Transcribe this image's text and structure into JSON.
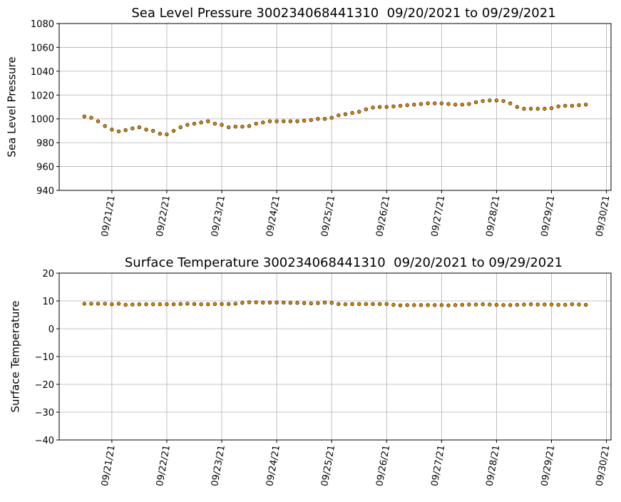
{
  "chart_data": [
    {
      "type": "scatter",
      "title": "Sea Level Pressure 300234068441310  09/20/2021 to 09/29/2021",
      "y_label": "Sea Level Pressure",
      "x": [
        "2021-09-20T12:00",
        "2021-09-20T15:00",
        "2021-09-20T18:00",
        "2021-09-20T21:00",
        "2021-09-21T00:00",
        "2021-09-21T03:00",
        "2021-09-21T06:00",
        "2021-09-21T09:00",
        "2021-09-21T12:00",
        "2021-09-21T15:00",
        "2021-09-21T18:00",
        "2021-09-21T21:00",
        "2021-09-22T00:00",
        "2021-09-22T03:00",
        "2021-09-22T06:00",
        "2021-09-22T09:00",
        "2021-09-22T12:00",
        "2021-09-22T15:00",
        "2021-09-22T18:00",
        "2021-09-22T21:00",
        "2021-09-23T00:00",
        "2021-09-23T03:00",
        "2021-09-23T06:00",
        "2021-09-23T09:00",
        "2021-09-23T12:00",
        "2021-09-23T15:00",
        "2021-09-23T18:00",
        "2021-09-23T21:00",
        "2021-09-24T00:00",
        "2021-09-24T03:00",
        "2021-09-24T06:00",
        "2021-09-24T09:00",
        "2021-09-24T12:00",
        "2021-09-24T15:00",
        "2021-09-24T18:00",
        "2021-09-24T21:00",
        "2021-09-25T00:00",
        "2021-09-25T03:00",
        "2021-09-25T06:00",
        "2021-09-25T09:00",
        "2021-09-25T12:00",
        "2021-09-25T15:00",
        "2021-09-25T18:00",
        "2021-09-25T21:00",
        "2021-09-26T00:00",
        "2021-09-26T03:00",
        "2021-09-26T06:00",
        "2021-09-26T09:00",
        "2021-09-26T12:00",
        "2021-09-26T15:00",
        "2021-09-26T18:00",
        "2021-09-26T21:00",
        "2021-09-27T00:00",
        "2021-09-27T03:00",
        "2021-09-27T06:00",
        "2021-09-27T09:00",
        "2021-09-27T12:00",
        "2021-09-27T15:00",
        "2021-09-27T18:00",
        "2021-09-27T21:00",
        "2021-09-28T00:00",
        "2021-09-28T03:00",
        "2021-09-28T06:00",
        "2021-09-28T09:00",
        "2021-09-28T12:00",
        "2021-09-28T15:00",
        "2021-09-28T18:00",
        "2021-09-28T21:00",
        "2021-09-29T00:00",
        "2021-09-29T03:00",
        "2021-09-29T06:00",
        "2021-09-29T09:00",
        "2021-09-29T12:00",
        "2021-09-29T15:00"
      ],
      "series": [
        {
          "color": "#e08a00",
          "values": [
            1002,
            1001,
            998,
            994,
            991,
            989.5,
            990.5,
            992,
            993,
            991,
            990,
            987.5,
            987,
            990,
            993,
            995,
            996,
            997,
            998,
            996,
            995,
            993,
            993.5,
            993.5,
            994,
            996,
            997,
            998,
            998,
            998,
            998,
            998,
            998.5,
            999,
            1000,
            1000,
            1001,
            1003,
            1004,
            1005,
            1006,
            1008,
            1009.5,
            1010,
            1010,
            1010.5,
            1011,
            1011.5,
            1012,
            1012.5,
            1013,
            1013,
            1013,
            1012.5,
            1012,
            1012,
            1012.5,
            1014,
            1015,
            1015.5,
            1015.5,
            1015,
            1013,
            1010,
            1008.5,
            1008.5,
            1008.5,
            1008.5,
            1009,
            1010.5,
            1011,
            1011,
            1011.5,
            1012
          ]
        }
      ],
      "xlim": [
        "2021-09-20T01:00",
        "2021-09-30T02:00"
      ],
      "xticks": [
        {
          "value": "2021-09-21",
          "label": "09/21/21"
        },
        {
          "value": "2021-09-22",
          "label": "09/22/21"
        },
        {
          "value": "2021-09-23",
          "label": "09/23/21"
        },
        {
          "value": "2021-09-24",
          "label": "09/24/21"
        },
        {
          "value": "2021-09-25",
          "label": "09/25/21"
        },
        {
          "value": "2021-09-26",
          "label": "09/26/21"
        },
        {
          "value": "2021-09-27",
          "label": "09/27/21"
        },
        {
          "value": "2021-09-28",
          "label": "09/28/21"
        },
        {
          "value": "2021-09-29",
          "label": "09/29/21"
        },
        {
          "value": "2021-09-30",
          "label": "09/30/21"
        }
      ],
      "ylim": [
        940,
        1080
      ],
      "yticks": [
        940,
        960,
        980,
        1000,
        1020,
        1040,
        1060,
        1080
      ],
      "grid": true
    },
    {
      "type": "scatter",
      "title": "Surface Temperature 300234068441310  09/20/2021 to 09/29/2021",
      "y_label": "Surface Temperature",
      "x": [
        "2021-09-20T12:00",
        "2021-09-20T15:00",
        "2021-09-20T18:00",
        "2021-09-20T21:00",
        "2021-09-21T00:00",
        "2021-09-21T03:00",
        "2021-09-21T06:00",
        "2021-09-21T09:00",
        "2021-09-21T12:00",
        "2021-09-21T15:00",
        "2021-09-21T18:00",
        "2021-09-21T21:00",
        "2021-09-22T00:00",
        "2021-09-22T03:00",
        "2021-09-22T06:00",
        "2021-09-22T09:00",
        "2021-09-22T12:00",
        "2021-09-22T15:00",
        "2021-09-22T18:00",
        "2021-09-22T21:00",
        "2021-09-23T00:00",
        "2021-09-23T03:00",
        "2021-09-23T06:00",
        "2021-09-23T09:00",
        "2021-09-23T12:00",
        "2021-09-23T15:00",
        "2021-09-23T18:00",
        "2021-09-23T21:00",
        "2021-09-24T00:00",
        "2021-09-24T03:00",
        "2021-09-24T06:00",
        "2021-09-24T09:00",
        "2021-09-24T12:00",
        "2021-09-24T15:00",
        "2021-09-24T18:00",
        "2021-09-24T21:00",
        "2021-09-25T00:00",
        "2021-09-25T03:00",
        "2021-09-25T06:00",
        "2021-09-25T09:00",
        "2021-09-25T12:00",
        "2021-09-25T15:00",
        "2021-09-25T18:00",
        "2021-09-25T21:00",
        "2021-09-26T00:00",
        "2021-09-26T03:00",
        "2021-09-26T06:00",
        "2021-09-26T09:00",
        "2021-09-26T12:00",
        "2021-09-26T15:00",
        "2021-09-26T18:00",
        "2021-09-26T21:00",
        "2021-09-27T00:00",
        "2021-09-27T03:00",
        "2021-09-27T06:00",
        "2021-09-27T09:00",
        "2021-09-27T12:00",
        "2021-09-27T15:00",
        "2021-09-27T18:00",
        "2021-09-27T21:00",
        "2021-09-28T00:00",
        "2021-09-28T03:00",
        "2021-09-28T06:00",
        "2021-09-28T09:00",
        "2021-09-28T12:00",
        "2021-09-28T15:00",
        "2021-09-28T18:00",
        "2021-09-28T21:00",
        "2021-09-29T00:00",
        "2021-09-29T03:00",
        "2021-09-29T06:00",
        "2021-09-29T09:00",
        "2021-09-29T12:00",
        "2021-09-29T15:00"
      ],
      "series": [
        {
          "color": "#e08a00",
          "values": [
            9,
            9,
            9,
            9,
            8.8,
            9,
            8.6,
            8.7,
            8.8,
            8.8,
            8.8,
            8.8,
            8.8,
            8.8,
            8.9,
            9,
            8.9,
            8.8,
            8.8,
            8.9,
            8.9,
            8.9,
            9,
            9.3,
            9.5,
            9.5,
            9.4,
            9.4,
            9.4,
            9.4,
            9.3,
            9.3,
            9.2,
            9.1,
            9.2,
            9.4,
            9.3,
            8.9,
            8.8,
            8.9,
            8.9,
            8.9,
            8.9,
            8.9,
            8.9,
            8.6,
            8.4,
            8.5,
            8.5,
            8.5,
            8.5,
            8.5,
            8.5,
            8.4,
            8.5,
            8.6,
            8.7,
            8.7,
            8.8,
            8.7,
            8.6,
            8.5,
            8.5,
            8.6,
            8.7,
            8.8,
            8.7,
            8.7,
            8.7,
            8.6,
            8.6,
            8.8,
            8.7,
            8.6
          ]
        }
      ],
      "xlim": [
        "2021-09-20T01:00",
        "2021-09-30T02:00"
      ],
      "xticks": [
        {
          "value": "2021-09-21",
          "label": "09/21/21"
        },
        {
          "value": "2021-09-22",
          "label": "09/22/21"
        },
        {
          "value": "2021-09-23",
          "label": "09/23/21"
        },
        {
          "value": "2021-09-24",
          "label": "09/24/21"
        },
        {
          "value": "2021-09-25",
          "label": "09/25/21"
        },
        {
          "value": "2021-09-26",
          "label": "09/26/21"
        },
        {
          "value": "2021-09-27",
          "label": "09/27/21"
        },
        {
          "value": "2021-09-28",
          "label": "09/28/21"
        },
        {
          "value": "2021-09-29",
          "label": "09/29/21"
        },
        {
          "value": "2021-09-30",
          "label": "09/30/21"
        }
      ],
      "ylim": [
        -40,
        20
      ],
      "yticks": [
        {
          "value": -40,
          "label": "−40"
        },
        {
          "value": -30,
          "label": "−30"
        },
        {
          "value": -20,
          "label": "−20"
        },
        {
          "value": -10,
          "label": "−10"
        },
        0,
        10,
        20
      ],
      "grid": true
    }
  ]
}
